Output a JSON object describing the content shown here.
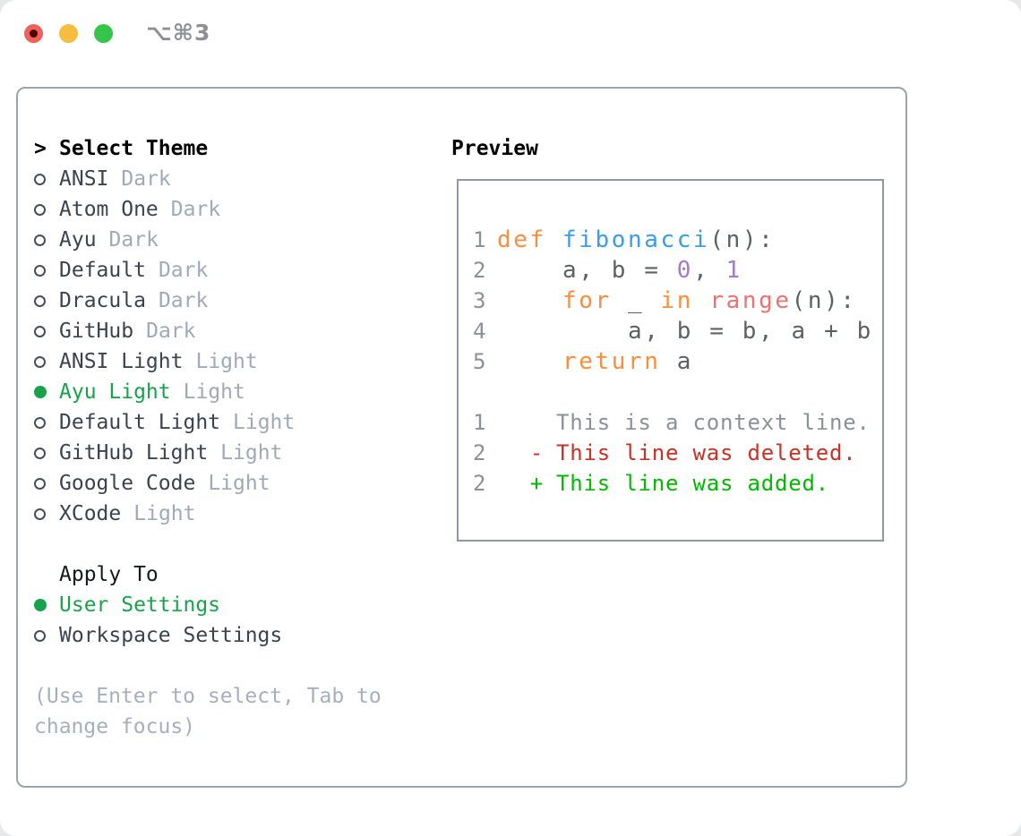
{
  "window": {
    "shortcut": "⌥⌘3",
    "traffic_lights": [
      {
        "name": "close",
        "color": "#f0615b",
        "has_dot": true
      },
      {
        "name": "minimize",
        "color": "#f6bd40",
        "has_dot": false
      },
      {
        "name": "zoom",
        "color": "#35c54b",
        "has_dot": false
      }
    ]
  },
  "theme_menu": {
    "cursor": ">",
    "title": "Select Theme",
    "items": [
      {
        "label": "ANSI",
        "tag": "Dark",
        "selected": false
      },
      {
        "label": "Atom One",
        "tag": "Dark",
        "selected": false
      },
      {
        "label": "Ayu",
        "tag": "Dark",
        "selected": false
      },
      {
        "label": "Default",
        "tag": "Dark",
        "selected": false
      },
      {
        "label": "Dracula",
        "tag": "Dark",
        "selected": false
      },
      {
        "label": "GitHub",
        "tag": "Dark",
        "selected": false
      },
      {
        "label": "ANSI Light",
        "tag": "Light",
        "selected": false
      },
      {
        "label": "Ayu Light",
        "tag": "Light",
        "selected": true
      },
      {
        "label": "Default Light",
        "tag": "Light",
        "selected": false
      },
      {
        "label": "GitHub Light",
        "tag": "Light",
        "selected": false
      },
      {
        "label": "Google Code",
        "tag": "Light",
        "selected": false
      },
      {
        "label": "XCode",
        "tag": "Light",
        "selected": false
      }
    ]
  },
  "apply_to": {
    "title": "Apply To",
    "options": [
      {
        "label": "User Settings",
        "selected": true
      },
      {
        "label": "Workspace Settings",
        "selected": false
      }
    ]
  },
  "hint": "(Use Enter to select, Tab to change focus)",
  "preview": {
    "title": "Preview",
    "code_lines": [
      {
        "num": "1",
        "segments": [
          {
            "t": "def",
            "c": "keyword"
          },
          {
            "t": " ",
            "c": "text"
          },
          {
            "t": "fibonacci",
            "c": "function"
          },
          {
            "t": "(n):",
            "c": "text"
          }
        ]
      },
      {
        "num": "2",
        "segments": [
          {
            "t": "    a, b = ",
            "c": "text"
          },
          {
            "t": "0",
            "c": "number"
          },
          {
            "t": ", ",
            "c": "text"
          },
          {
            "t": "1",
            "c": "number"
          }
        ]
      },
      {
        "num": "3",
        "segments": [
          {
            "t": "    ",
            "c": "text"
          },
          {
            "t": "for",
            "c": "keyword"
          },
          {
            "t": " _ ",
            "c": "text"
          },
          {
            "t": "in",
            "c": "keyword"
          },
          {
            "t": " ",
            "c": "text"
          },
          {
            "t": "range",
            "c": "builtin"
          },
          {
            "t": "(n):",
            "c": "text"
          }
        ]
      },
      {
        "num": "4",
        "segments": [
          {
            "t": "        a, b = b, a + b",
            "c": "text"
          }
        ]
      },
      {
        "num": "5",
        "segments": [
          {
            "t": "    ",
            "c": "text"
          },
          {
            "t": "return",
            "c": "keyword"
          },
          {
            "t": " a",
            "c": "text"
          }
        ]
      }
    ],
    "diff_lines": [
      {
        "num": "1",
        "mark": "",
        "text": "This is a context line.",
        "c": "context"
      },
      {
        "num": "2",
        "mark": "-",
        "text": "This line was deleted.",
        "c": "deleted"
      },
      {
        "num": "2",
        "mark": "+",
        "text": "This line was added.",
        "c": "added"
      }
    ]
  },
  "colors": {
    "keyword": "#fa8d3e",
    "function": "#399ee6",
    "builtin": "#f07171",
    "number": "#a37acc",
    "text": "#5c6166",
    "line_number": "#8a9199",
    "context": "#8a9199",
    "deleted": "#cb3024",
    "added": "#00ba00",
    "selected": "#17a34a",
    "item_label": "#3a434e",
    "tag": "#9faab6",
    "hint": "#a6b0bc"
  }
}
